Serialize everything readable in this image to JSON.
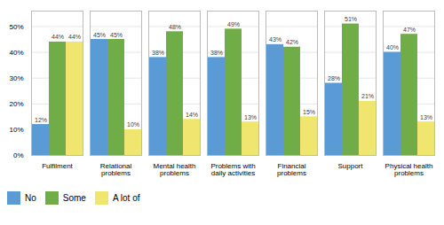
{
  "chart_data": {
    "type": "bar",
    "categories": [
      "Fulfilment",
      "Relational\nproblems",
      "Mental health\nproblems",
      "Problems with\ndaily activities",
      "Financial\nproblems",
      "Support",
      "Physical health\nproblems"
    ],
    "series": [
      {
        "name": "No",
        "color": "#5b9bd5",
        "values": [
          12,
          45,
          38,
          38,
          43,
          28,
          40
        ],
        "value_labels": [
          "12%",
          "45%",
          "38%",
          "38%",
          "43%",
          "28%",
          "40%"
        ]
      },
      {
        "name": "Some",
        "color": "#70ad47",
        "values": [
          44,
          45,
          48,
          49,
          42,
          51,
          47
        ],
        "value_labels": [
          "44%",
          "45%",
          "48%",
          "49%",
          "42%",
          "51%",
          "47%"
        ]
      },
      {
        "name": "A lot of",
        "color": "#f0e56e",
        "values": [
          44,
          10,
          14,
          13,
          15,
          21,
          13
        ],
        "value_labels": [
          "44%",
          "10%",
          "14%",
          "13%",
          "15%",
          "21%",
          "13%"
        ]
      }
    ],
    "ylim": [
      0,
      56
    ],
    "yticks": [
      {
        "value": 0,
        "label": "0%"
      },
      {
        "value": 10,
        "label": "10%"
      },
      {
        "value": 20,
        "label": "20%"
      },
      {
        "value": 30,
        "label": "30%"
      },
      {
        "value": 40,
        "label": "40%"
      },
      {
        "value": 50,
        "label": "50%"
      }
    ],
    "grid": true,
    "legend": "lower left",
    "data_labels": true
  }
}
